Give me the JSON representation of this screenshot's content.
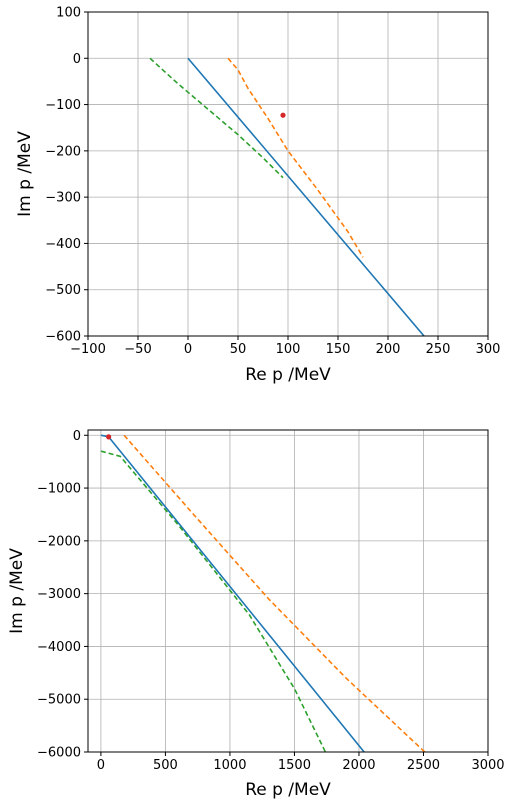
{
  "chart_data": [
    {
      "type": "line",
      "xlabel": "Re p /MeV",
      "ylabel": "Im p /MeV",
      "xlim": [
        -100,
        300
      ],
      "ylim": [
        -600,
        100
      ],
      "xticks": [
        -100,
        -50,
        0,
        50,
        100,
        150,
        200,
        250,
        300
      ],
      "yticks": [
        100,
        0,
        -100,
        -200,
        -300,
        -400,
        -500,
        -600
      ],
      "xtick_labels": [
        "−100",
        "−50",
        "0",
        "50",
        "100",
        "150",
        "200",
        "250",
        "300"
      ],
      "ytick_labels": [
        "100",
        "0",
        "−100",
        "−200",
        "−300",
        "−400",
        "−500",
        "−600"
      ],
      "grid": true,
      "series": [
        {
          "color": "#1f77b4",
          "style": "solid",
          "x": [
            0,
            236
          ],
          "y": [
            0,
            -600
          ]
        },
        {
          "color": "#ff7f0e",
          "style": "dashed",
          "x": [
            40,
            50,
            60,
            80,
            100,
            130,
            160,
            175
          ],
          "y": [
            0,
            -25,
            -65,
            -130,
            -200,
            -285,
            -375,
            -430
          ]
        },
        {
          "color": "#2ca02c",
          "style": "dashed",
          "x": [
            -38,
            -10,
            20,
            50,
            75,
            95
          ],
          "y": [
            0,
            -55,
            -110,
            -165,
            -215,
            -258
          ]
        }
      ],
      "points": [
        {
          "color": "#d62728",
          "x": 95,
          "y": -123
        }
      ]
    },
    {
      "type": "line",
      "xlabel": "Re p /MeV",
      "ylabel": "Im p /MeV",
      "xlim": [
        -100,
        3000
      ],
      "ylim": [
        -6000,
        100
      ],
      "xticks": [
        0,
        500,
        1000,
        1500,
        2000,
        2500,
        3000
      ],
      "yticks": [
        0,
        -1000,
        -2000,
        -3000,
        -4000,
        -5000,
        -6000
      ],
      "xtick_labels": [
        "0",
        "500",
        "1000",
        "1500",
        "2000",
        "2500",
        "3000"
      ],
      "ytick_labels": [
        "0",
        "−1000",
        "−2000",
        "−3000",
        "−4000",
        "−5000",
        "−6000"
      ],
      "grid": true,
      "series": [
        {
          "color": "#1f77b4",
          "style": "solid",
          "x": [
            0,
            60,
            2040
          ],
          "y": [
            0,
            -30,
            -6000
          ]
        },
        {
          "color": "#ff7f0e",
          "style": "dashed",
          "x": [
            180,
            700,
            1300,
            1900,
            2510
          ],
          "y": [
            0,
            -1450,
            -3100,
            -4600,
            -6000
          ]
        },
        {
          "color": "#2ca02c",
          "style": "dashed",
          "x": [
            0,
            150,
            600,
            1150,
            1500,
            1740
          ],
          "y": [
            -300,
            -400,
            -1700,
            -3400,
            -4800,
            -6000
          ]
        }
      ],
      "points": [
        {
          "color": "#d62728",
          "x": 60,
          "y": -30
        }
      ]
    }
  ]
}
